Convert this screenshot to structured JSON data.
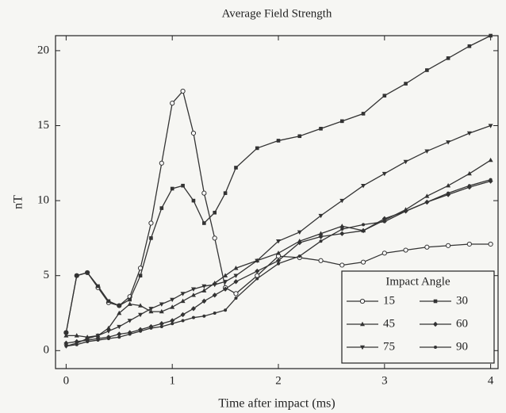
{
  "chart_data": {
    "type": "line",
    "title": "Average Field Strength",
    "xlabel": "Time after impact (ms)",
    "ylabel": "nT",
    "x": [
      0,
      0.1,
      0.2,
      0.3,
      0.4,
      0.5,
      0.6,
      0.7,
      0.8,
      0.9,
      1.0,
      1.1,
      1.2,
      1.3,
      1.4,
      1.5,
      1.6,
      1.8,
      2.0,
      2.2,
      2.4,
      2.6,
      2.8,
      3.0,
      3.2,
      3.4,
      3.6,
      3.8,
      4.0
    ],
    "series": [
      {
        "name": "15",
        "color": "#333333",
        "marker": "circle-open",
        "values": [
          1.2,
          5.0,
          5.2,
          4.2,
          3.2,
          3.0,
          3.6,
          5.5,
          8.5,
          12.5,
          16.5,
          17.3,
          14.5,
          10.5,
          7.5,
          4.2,
          3.8,
          5.0,
          6.3,
          6.2,
          6.0,
          5.7,
          5.9,
          6.5,
          6.7,
          6.9,
          7.0,
          7.1,
          7.1
        ]
      },
      {
        "name": "30",
        "color": "#333333",
        "marker": "square",
        "values": [
          1.2,
          5.0,
          5.2,
          4.3,
          3.3,
          3.0,
          3.4,
          5.0,
          7.5,
          9.5,
          10.8,
          11.0,
          10.0,
          8.5,
          9.2,
          10.5,
          12.2,
          13.5,
          14.0,
          14.3,
          14.8,
          15.3,
          15.8,
          17.0,
          17.8,
          18.7,
          19.5,
          20.3,
          21.0
        ]
      },
      {
        "name": "45",
        "color": "#333333",
        "marker": "triangle",
        "values": [
          1.0,
          1.0,
          0.9,
          1.0,
          1.5,
          2.5,
          3.1,
          3.0,
          2.6,
          2.6,
          2.9,
          3.3,
          3.7,
          4.0,
          4.5,
          5.0,
          5.5,
          6.0,
          6.5,
          7.3,
          7.8,
          8.3,
          8.0,
          8.7,
          9.4,
          10.3,
          11.0,
          11.8,
          12.7
        ]
      },
      {
        "name": "60",
        "color": "#333333",
        "marker": "diamond",
        "values": [
          0.5,
          0.6,
          0.7,
          0.8,
          0.9,
          1.1,
          1.2,
          1.4,
          1.6,
          1.8,
          2.0,
          2.4,
          2.8,
          3.3,
          3.7,
          4.1,
          4.6,
          5.3,
          6.0,
          7.2,
          7.6,
          7.8,
          8.0,
          8.8,
          9.3,
          9.9,
          10.4,
          10.9,
          11.3
        ]
      },
      {
        "name": "75",
        "color": "#333333",
        "marker": "triangle-down",
        "values": [
          0.3,
          0.5,
          0.8,
          1.0,
          1.3,
          1.6,
          2.0,
          2.4,
          2.8,
          3.1,
          3.4,
          3.8,
          4.1,
          4.3,
          4.4,
          4.6,
          5.0,
          6.0,
          7.3,
          7.9,
          9.0,
          10.0,
          11.0,
          11.8,
          12.6,
          13.3,
          13.9,
          14.5,
          15.0
        ]
      },
      {
        "name": "90",
        "color": "#333333",
        "marker": "dot",
        "values": [
          0.3,
          0.4,
          0.6,
          0.7,
          0.8,
          0.9,
          1.1,
          1.3,
          1.5,
          1.6,
          1.8,
          2.0,
          2.2,
          2.3,
          2.5,
          2.7,
          3.5,
          4.8,
          5.8,
          6.3,
          7.3,
          8.1,
          8.4,
          8.6,
          9.3,
          9.9,
          10.5,
          11.0,
          11.4
        ]
      }
    ],
    "legend_title": "Impact Angle",
    "legend": "lower right",
    "xlim": [
      -0.1,
      4.07
    ],
    "ylim": [
      -1.2,
      21
    ],
    "xticks": [
      0,
      1,
      2,
      3,
      4
    ],
    "yticks": [
      0,
      5,
      10,
      15,
      20
    ],
    "grid": false
  }
}
